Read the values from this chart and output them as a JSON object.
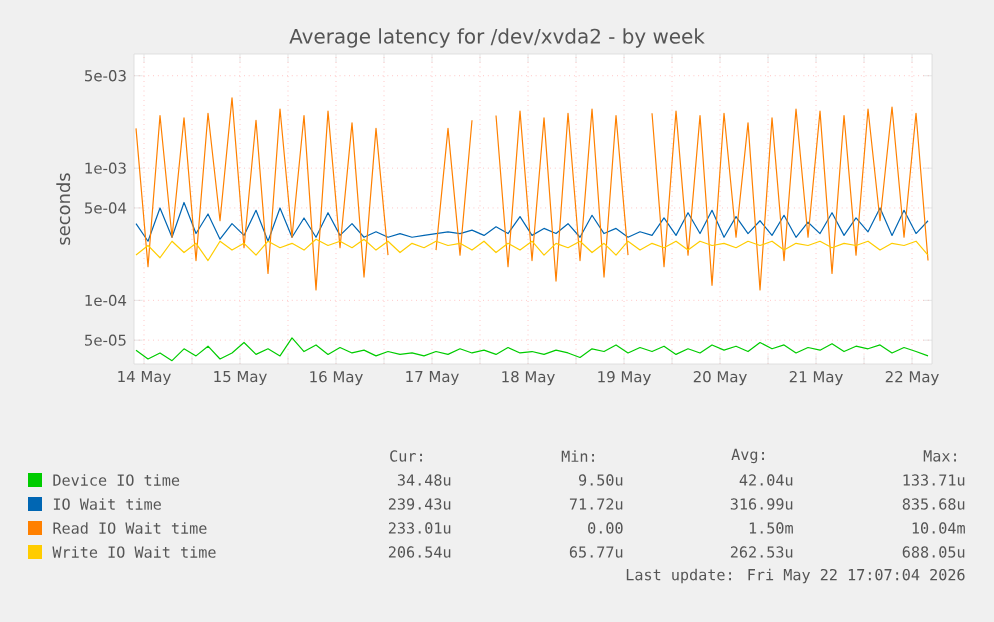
{
  "chart_data": {
    "type": "line",
    "title": "Average latency for /dev/xvda2 - by week",
    "ylabel": "seconds",
    "log": "y",
    "grid": true,
    "legend": "bottom",
    "marker": "none",
    "x": [
      "2026-05-14T10:00",
      "2026-05-14T13:00",
      "2026-05-14T16:00",
      "2026-05-14T19:00",
      "2026-05-14T22:00",
      "2026-05-15T01:00",
      "2026-05-15T04:00",
      "2026-05-15T07:00",
      "2026-05-15T10:00",
      "2026-05-15T13:00",
      "2026-05-15T16:00",
      "2026-05-15T19:00",
      "2026-05-15T22:00",
      "2026-05-16T01:00",
      "2026-05-16T04:00",
      "2026-05-16T07:00",
      "2026-05-16T10:00",
      "2026-05-16T13:00",
      "2026-05-16T16:00",
      "2026-05-16T19:00",
      "2026-05-16T22:00",
      "2026-05-17T01:00",
      "2026-05-17T04:00",
      "2026-05-17T07:00",
      "2026-05-17T10:00",
      "2026-05-17T13:00",
      "2026-05-17T16:00",
      "2026-05-17T19:00",
      "2026-05-17T22:00",
      "2026-05-18T01:00",
      "2026-05-18T04:00",
      "2026-05-18T07:00",
      "2026-05-18T10:00",
      "2026-05-18T13:00",
      "2026-05-18T16:00",
      "2026-05-18T19:00",
      "2026-05-18T22:00",
      "2026-05-19T01:00",
      "2026-05-19T04:00",
      "2026-05-19T07:00",
      "2026-05-19T10:00",
      "2026-05-19T13:00",
      "2026-05-19T16:00",
      "2026-05-19T19:00",
      "2026-05-19T22:00",
      "2026-05-20T01:00",
      "2026-05-20T04:00",
      "2026-05-20T07:00",
      "2026-05-20T10:00",
      "2026-05-20T13:00",
      "2026-05-20T16:00",
      "2026-05-20T19:00",
      "2026-05-20T22:00",
      "2026-05-21T01:00",
      "2026-05-21T04:00",
      "2026-05-21T07:00",
      "2026-05-21T10:00",
      "2026-05-21T13:00",
      "2026-05-21T16:00",
      "2026-05-21T19:00",
      "2026-05-21T22:00",
      "2026-05-22T01:00",
      "2026-05-22T04:00",
      "2026-05-22T07:00",
      "2026-05-22T10:00",
      "2026-05-22T13:00",
      "2026-05-22T16:00"
    ],
    "xlim": [
      "2026-05-14T09:30",
      "2026-05-22T17:00"
    ],
    "xticks": [
      {
        "value": "2026-05-14T12:00",
        "label": "14 May"
      },
      {
        "value": "2026-05-15T00:00",
        "label": null
      },
      {
        "value": "2026-05-15T12:00",
        "label": "15 May"
      },
      {
        "value": "2026-05-16T00:00",
        "label": null
      },
      {
        "value": "2026-05-16T12:00",
        "label": "16 May"
      },
      {
        "value": "2026-05-17T00:00",
        "label": null
      },
      {
        "value": "2026-05-17T12:00",
        "label": "17 May"
      },
      {
        "value": "2026-05-18T00:00",
        "label": null
      },
      {
        "value": "2026-05-18T12:00",
        "label": "18 May"
      },
      {
        "value": "2026-05-19T00:00",
        "label": null
      },
      {
        "value": "2026-05-19T12:00",
        "label": "19 May"
      },
      {
        "value": "2026-05-20T00:00",
        "label": null
      },
      {
        "value": "2026-05-20T12:00",
        "label": "20 May"
      },
      {
        "value": "2026-05-21T00:00",
        "label": null
      },
      {
        "value": "2026-05-21T12:00",
        "label": "21 May"
      },
      {
        "value": "2026-05-22T00:00",
        "label": null
      },
      {
        "value": "2026-05-22T12:00",
        "label": "22 May"
      }
    ],
    "ylim": [
      3.3e-05,
      0.0073
    ],
    "yticks": [
      {
        "value": 5e-05,
        "label": "5e-05"
      },
      {
        "value": 0.0001,
        "label": "1e-04"
      },
      {
        "value": 0.0005,
        "label": "5e-04"
      },
      {
        "value": 0.001,
        "label": "1e-03"
      },
      {
        "value": 0.005,
        "label": "5e-03"
      }
    ],
    "series": [
      {
        "name": "Device IO time",
        "color": "#00cc00",
        "values": [
          4.2e-05,
          3.6e-05,
          4e-05,
          3.5e-05,
          4.3e-05,
          3.8e-05,
          4.5e-05,
          3.6e-05,
          4e-05,
          4.8e-05,
          3.9e-05,
          4.3e-05,
          3.8e-05,
          5.2e-05,
          4.1e-05,
          4.6e-05,
          3.9e-05,
          4.4e-05,
          4e-05,
          4.2e-05,
          3.8e-05,
          4.1e-05,
          3.9e-05,
          4e-05,
          3.8e-05,
          4.1e-05,
          3.9e-05,
          4.3e-05,
          4e-05,
          4.2e-05,
          3.9e-05,
          4.4e-05,
          4e-05,
          4.1e-05,
          3.9e-05,
          4.2e-05,
          4e-05,
          3.7e-05,
          4.3e-05,
          4.1e-05,
          4.6e-05,
          4e-05,
          4.4e-05,
          4.1e-05,
          4.5e-05,
          3.9e-05,
          4.3e-05,
          4e-05,
          4.6e-05,
          4.2e-05,
          4.5e-05,
          4.1e-05,
          4.8e-05,
          4.3e-05,
          4.6e-05,
          4e-05,
          4.4e-05,
          4.2e-05,
          4.7e-05,
          4.1e-05,
          4.5e-05,
          4.3e-05,
          4.6e-05,
          4e-05,
          4.4e-05,
          4.1e-05,
          3.8e-05
        ]
      },
      {
        "name": "IO Wait time",
        "color": "#0066b3",
        "values": [
          0.00038,
          0.00028,
          0.0005,
          0.0003,
          0.00055,
          0.00032,
          0.00045,
          0.00029,
          0.00038,
          0.00031,
          0.00048,
          0.00028,
          0.0005,
          0.0003,
          0.00042,
          0.0003,
          0.00046,
          0.00031,
          0.00038,
          0.0003,
          0.00033,
          0.0003,
          0.00032,
          0.0003,
          0.00031,
          0.00032,
          0.00033,
          0.00032,
          0.00034,
          0.00031,
          0.00036,
          0.00032,
          0.00043,
          0.00031,
          0.00035,
          0.00032,
          0.00038,
          0.0003,
          0.00044,
          0.00032,
          0.00035,
          0.0003,
          0.00033,
          0.00031,
          0.00042,
          0.00031,
          0.00046,
          0.00032,
          0.00048,
          0.0003,
          0.00043,
          0.00032,
          0.0004,
          0.00031,
          0.00044,
          0.0003,
          0.00039,
          0.00032,
          0.00046,
          0.00031,
          0.00042,
          0.00033,
          0.0005,
          0.00031,
          0.00048,
          0.00032,
          0.0004
        ]
      },
      {
        "name": "Read IO Wait time",
        "color": "#ff8000",
        "values": [
          0.002,
          0.00018,
          0.0025,
          0.0003,
          0.0024,
          0.0002,
          0.0026,
          0.0004,
          0.0034,
          0.00025,
          0.0023,
          0.00016,
          0.0028,
          0.0003,
          0.0025,
          0.00012,
          0.0027,
          0.00025,
          0.0022,
          0.00015,
          0.002,
          0.00022,
          null,
          null,
          null,
          0.00024,
          0.002,
          0.00022,
          0.0023,
          null,
          0.0025,
          0.00018,
          0.0027,
          0.0002,
          0.0024,
          0.00014,
          0.0026,
          0.0002,
          0.0028,
          0.00015,
          0.0025,
          0.00022,
          null,
          0.0026,
          0.00018,
          0.0027,
          0.00022,
          0.0025,
          0.00013,
          0.0026,
          0.0003,
          0.0022,
          0.00012,
          0.0024,
          0.0002,
          0.0028,
          0.0003,
          0.0027,
          0.00016,
          0.0025,
          0.00022,
          0.0028,
          0.0004,
          0.0029,
          0.0003,
          0.0026,
          0.0002
        ]
      },
      {
        "name": "Write IO Wait time",
        "color": "#ffcc00",
        "values": [
          0.00022,
          0.00026,
          0.00021,
          0.00028,
          0.00023,
          0.00027,
          0.0002,
          0.00028,
          0.00024,
          0.00027,
          0.00022,
          0.00028,
          0.00025,
          0.00027,
          0.00024,
          0.00029,
          0.00026,
          0.00028,
          0.00025,
          0.00029,
          0.00024,
          0.00028,
          0.00023,
          0.00027,
          0.00025,
          0.00028,
          0.00026,
          0.00027,
          0.00024,
          0.00028,
          0.00023,
          0.00027,
          0.00024,
          0.00028,
          0.00022,
          0.00027,
          0.00025,
          0.00028,
          0.00023,
          0.00027,
          0.00022,
          0.00028,
          0.00024,
          0.00027,
          0.00025,
          0.00028,
          0.00024,
          0.00028,
          0.00026,
          0.00027,
          0.00025,
          0.00028,
          0.00026,
          0.00028,
          0.00024,
          0.00027,
          0.00026,
          0.00028,
          0.00025,
          0.00027,
          0.00026,
          0.00028,
          0.00024,
          0.00027,
          0.00026,
          0.00028,
          0.00022
        ]
      }
    ],
    "annotations": [
      "Cur:",
      "Min:",
      "Avg:",
      "Max:",
      "34.48u",
      "9.50u",
      "42.04u",
      "133.71u",
      "239.43u",
      "71.72u",
      "316.99u",
      "835.68u",
      "233.01u",
      "0.00",
      "1.50m",
      "10.04m",
      "206.54u",
      "65.77u",
      "262.53u",
      "688.05u",
      "Last update: Fri May 22 17:07:04 2026"
    ]
  }
}
